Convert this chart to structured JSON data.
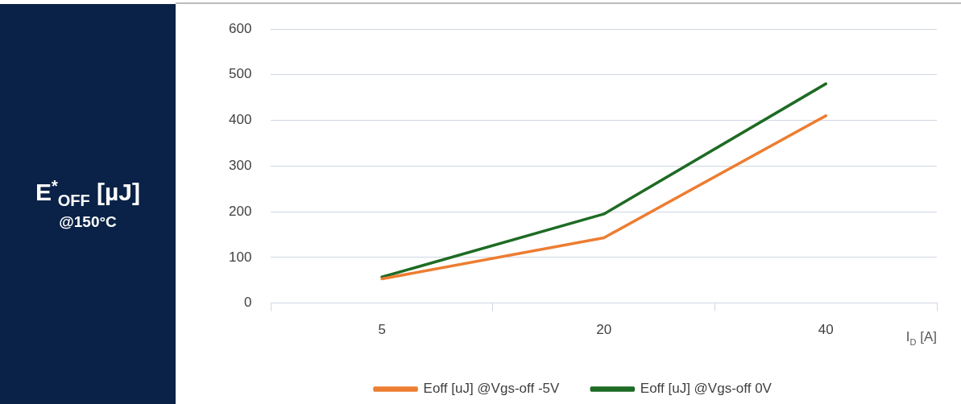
{
  "chart_data": {
    "type": "line",
    "ylabel": "E$^{*}$$_{OFF}$ [µJ]",
    "annotations": [
      "@150°C"
    ],
    "xlabel": "I$_{D}$ [A]",
    "categories": [
      "5",
      "20",
      "40"
    ],
    "series": [
      {
        "name": "Eoff [uJ] @Vgs-off -5V",
        "color": "#ed7d31",
        "values": [
          53,
          143,
          410
        ]
      },
      {
        "name": "Eoff [uJ] @Vgs-off 0V",
        "color": "#1e6b24",
        "values": [
          57,
          195,
          480
        ]
      }
    ],
    "ylim": [
      0,
      600
    ],
    "yticks": [
      0,
      100,
      200,
      300,
      400,
      500,
      600
    ],
    "grid": "y",
    "legend": "bottom",
    "marker": "none",
    "line_style": "solid"
  }
}
